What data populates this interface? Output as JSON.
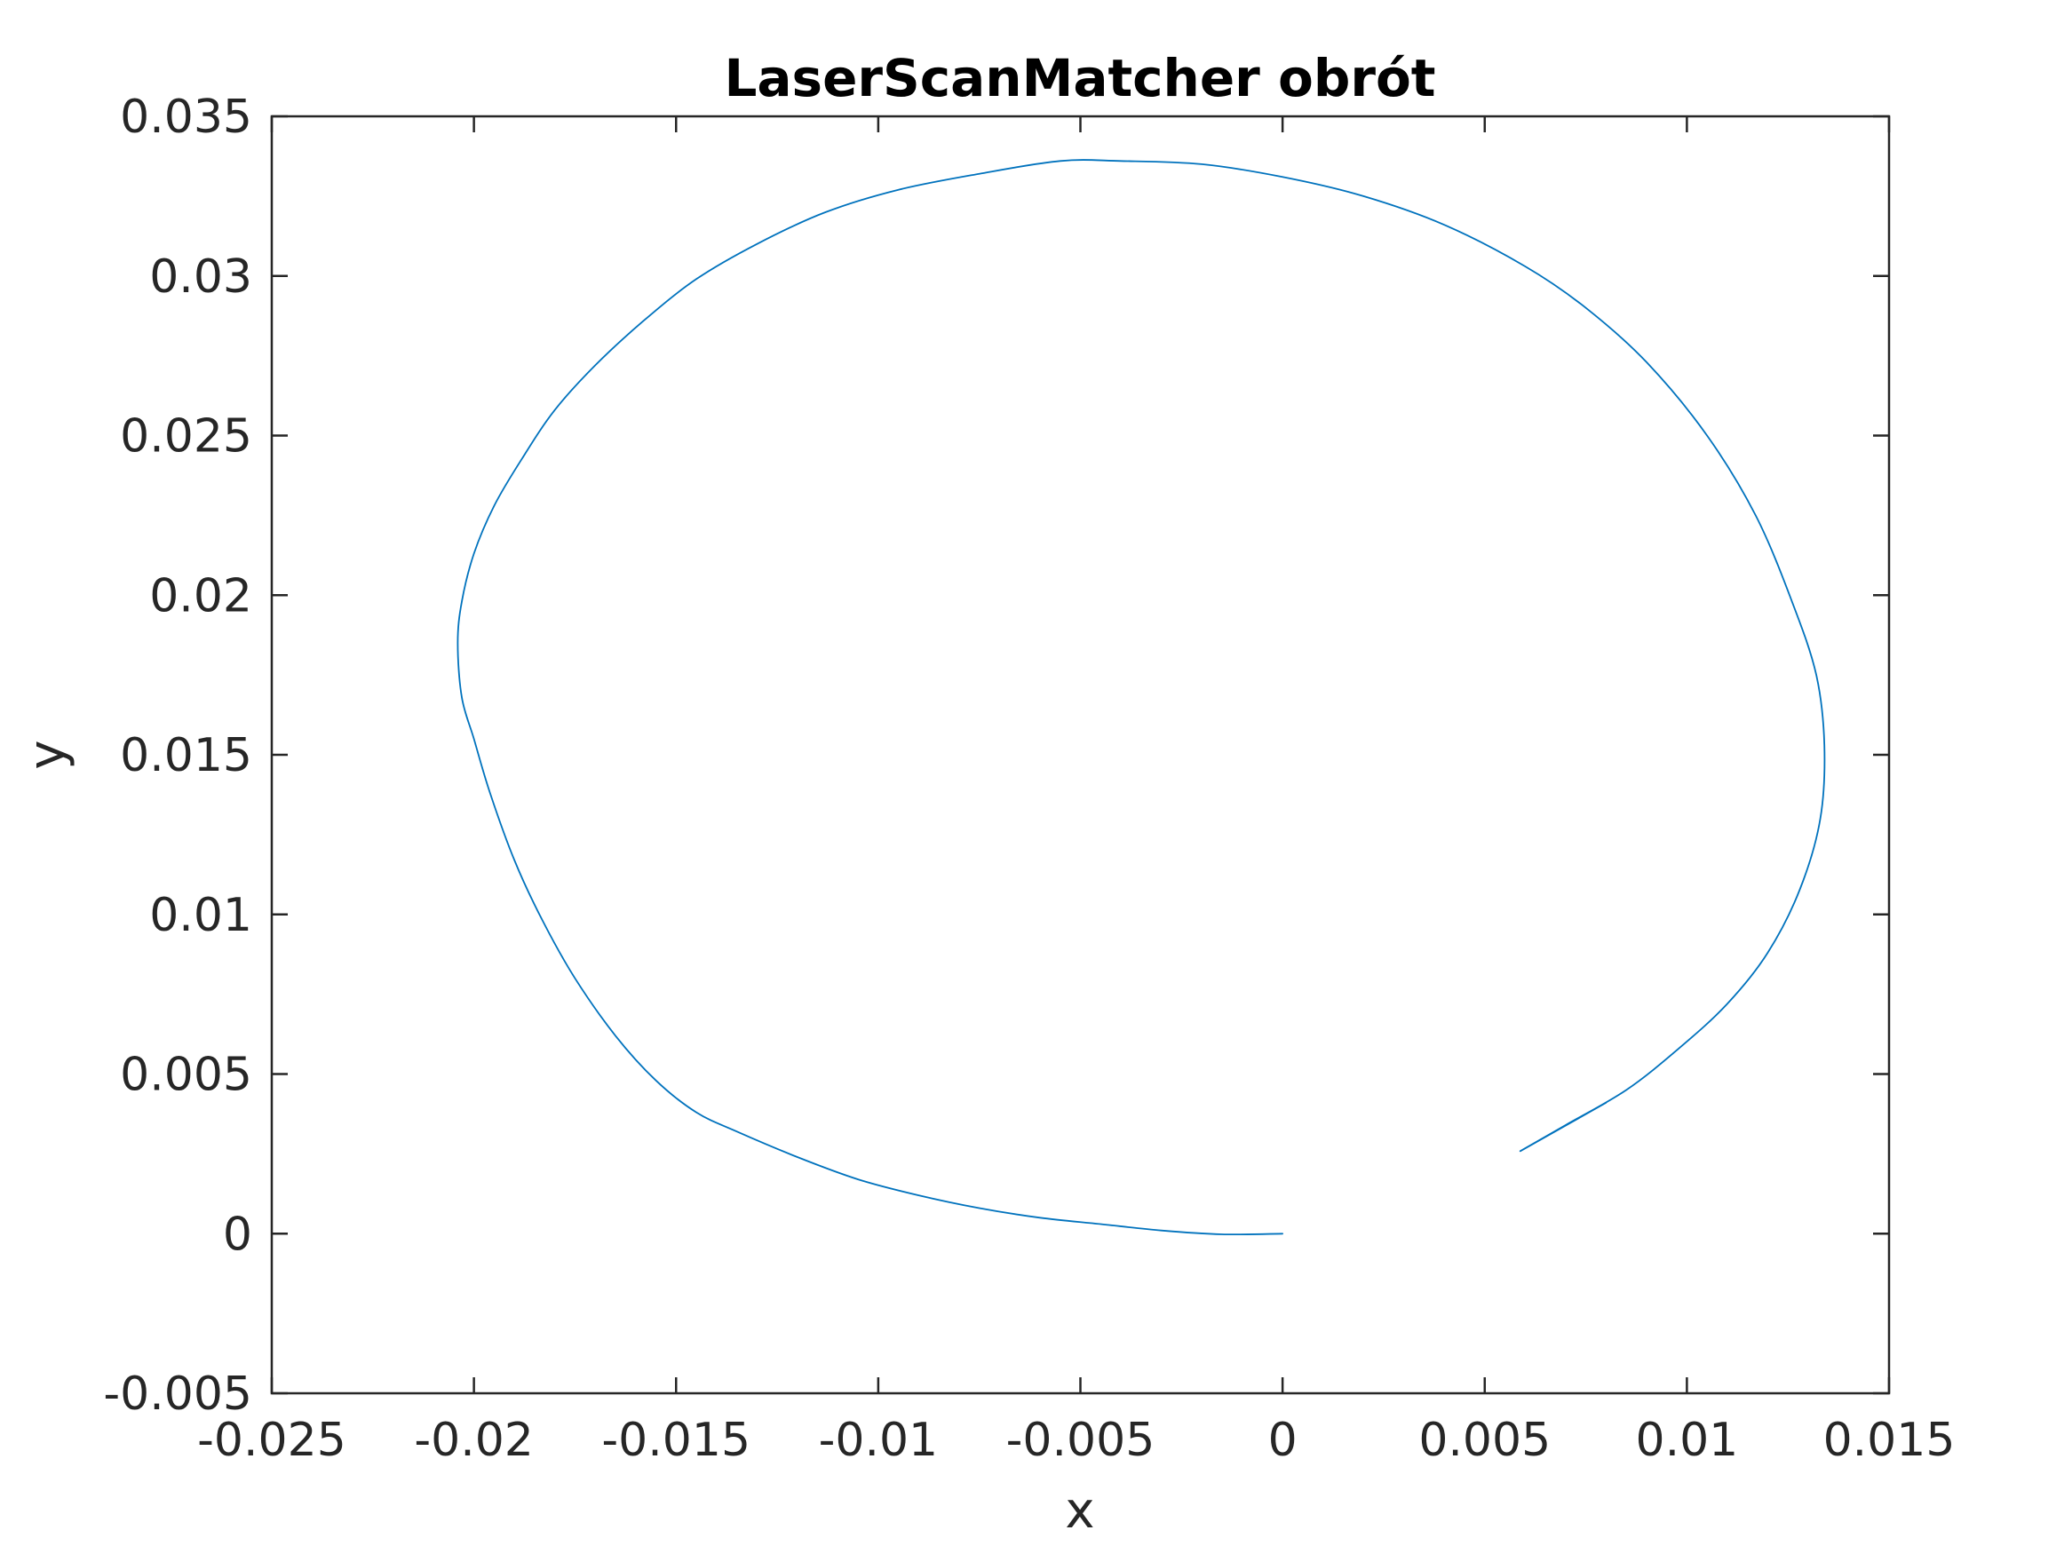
{
  "chart_data": {
    "type": "line",
    "title": "LaserScanMatcher obrót",
    "xlabel": "x",
    "ylabel": "y",
    "xlim": [
      -0.025,
      0.015
    ],
    "ylim": [
      -0.005,
      0.035
    ],
    "xticks": [
      -0.025,
      -0.02,
      -0.015,
      -0.01,
      -0.005,
      0,
      0.005,
      0.01,
      0.015
    ],
    "xtick_labels": [
      "-0.025",
      "-0.02",
      "-0.015",
      "-0.01",
      "-0.005",
      "0",
      "0.005",
      "0.01",
      "0.015"
    ],
    "yticks": [
      -0.005,
      0,
      0.005,
      0.01,
      0.015,
      0.02,
      0.025,
      0.03,
      0.035
    ],
    "ytick_labels": [
      "-0.005",
      "0",
      "0.005",
      "0.01",
      "0.015",
      "0.02",
      "0.025",
      "0.03",
      "0.035"
    ],
    "grid": false,
    "line_color": "#0072BD",
    "series": [
      {
        "x": [
          0.0,
          -0.0015,
          -0.003,
          -0.0045,
          -0.006,
          -0.0075,
          -0.009,
          -0.0105,
          -0.012,
          -0.0135,
          -0.0145,
          -0.0155,
          -0.0165,
          -0.0175,
          -0.0183,
          -0.019,
          -0.0196,
          -0.02,
          -0.0203,
          -0.0204,
          -0.0203,
          -0.02,
          -0.0195,
          -0.0188,
          -0.018,
          -0.017,
          -0.0158,
          -0.0145,
          -0.013,
          -0.0113,
          -0.0095,
          -0.0075,
          -0.0055,
          -0.004,
          -0.002,
          0.0,
          0.002,
          0.004,
          0.006,
          0.0075,
          0.009,
          0.0105,
          0.0117,
          0.0126,
          0.0132,
          0.0134,
          0.0133,
          0.0128,
          0.012,
          0.011,
          0.0098,
          0.0085,
          0.007,
          0.0059,
          0.008
        ],
        "y": [
          0.0,
          -2e-05,
          0.0001,
          0.0003,
          0.0005,
          0.0008,
          0.0012,
          0.0017,
          0.0024,
          0.0032,
          0.0038,
          0.0048,
          0.0062,
          0.008,
          0.0098,
          0.0117,
          0.0138,
          0.0155,
          0.0168,
          0.0185,
          0.0198,
          0.0213,
          0.0228,
          0.0243,
          0.0258,
          0.0272,
          0.0286,
          0.0299,
          0.031,
          0.032,
          0.0327,
          0.0332,
          0.0336,
          0.0336,
          0.0335,
          0.0331,
          0.0325,
          0.0316,
          0.0303,
          0.029,
          0.0273,
          0.025,
          0.0225,
          0.0198,
          0.0175,
          0.0153,
          0.013,
          0.0108,
          0.0088,
          0.0072,
          0.0058,
          0.0045,
          0.0034,
          0.0026,
          0.0041
        ]
      }
    ]
  }
}
